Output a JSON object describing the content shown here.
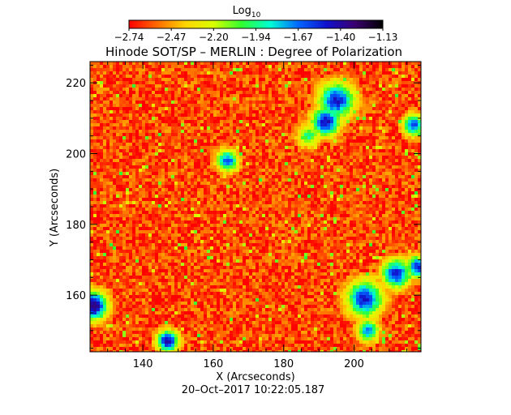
{
  "chart_data": {
    "type": "heatmap",
    "title": "Hinode SOT/SP – MERLIN : Degree of Polarization",
    "xlabel": "X (Arcseconds)",
    "ylabel": "Y (Arcseconds)",
    "timestamp": "20–Oct–2017 10:22:05.187",
    "xlim": [
      125,
      219
    ],
    "ylim": [
      144,
      226
    ],
    "x_ticks": [
      140,
      160,
      180,
      200
    ],
    "y_ticks": [
      160,
      180,
      200,
      220
    ],
    "grid": false,
    "colorbar": {
      "label_base": "Log",
      "label_sub": "10",
      "placement": "top",
      "range": [
        -2.74,
        -1.13
      ],
      "ticks": [
        "−2.74",
        "−2.47",
        "−2.20",
        "−1.94",
        "−1.67",
        "−1.40",
        "−1.13"
      ],
      "colors": [
        "#ff0000",
        "#ff6a00",
        "#ffd400",
        "#d8ff00",
        "#30ff30",
        "#00ffd4",
        "#0066ff",
        "#1010cc",
        "#3a0070",
        "#000000"
      ]
    },
    "field": {
      "background_level": -2.62,
      "noise_amplitude": 0.32,
      "clusters": [
        {
          "x": 195,
          "y": 215,
          "r": 5,
          "peak": -1.5
        },
        {
          "x": 192,
          "y": 209,
          "r": 4,
          "peak": -1.45
        },
        {
          "x": 164,
          "y": 198,
          "r": 3,
          "peak": -1.6
        },
        {
          "x": 126,
          "y": 157,
          "r": 4,
          "peak": -1.3
        },
        {
          "x": 147,
          "y": 147,
          "r": 3,
          "peak": -1.4
        },
        {
          "x": 203,
          "y": 159,
          "r": 5,
          "peak": -1.5
        },
        {
          "x": 212,
          "y": 166,
          "r": 4,
          "peak": -1.5
        },
        {
          "x": 218,
          "y": 168,
          "r": 3,
          "peak": -1.5
        },
        {
          "x": 217,
          "y": 208,
          "r": 3,
          "peak": -1.6
        },
        {
          "x": 204,
          "y": 150,
          "r": 3,
          "peak": -1.7
        },
        {
          "x": 187,
          "y": 205,
          "r": 3,
          "peak": -1.9
        }
      ]
    }
  }
}
